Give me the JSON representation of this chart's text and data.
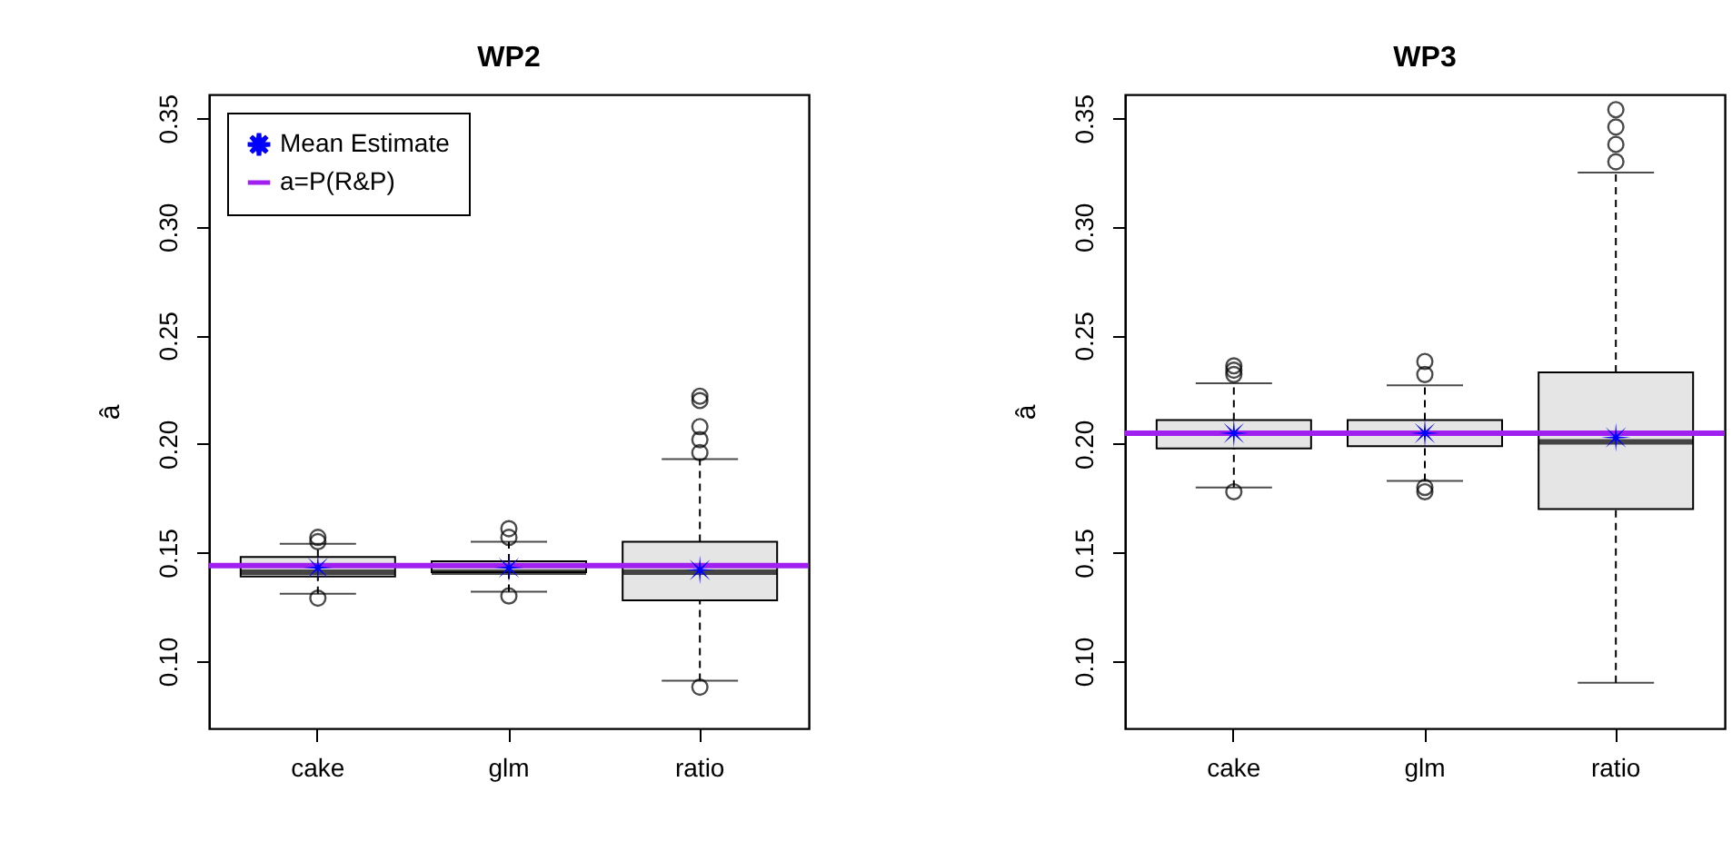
{
  "chart_data": [
    {
      "type": "box",
      "title": "WP2",
      "ylabel": "â",
      "categories": [
        "cake",
        "glm",
        "ratio"
      ],
      "ylim": [
        0.069,
        0.361
      ],
      "yticks": [
        {
          "value": 0.1,
          "label": "0.10"
        },
        0.15,
        {
          "value": 0.2,
          "label": "0.20"
        },
        0.25,
        {
          "value": 0.3,
          "label": "0.30"
        },
        0.35
      ],
      "legend": "top left",
      "marker": "star",
      "series": [
        {
          "type": "box",
          "color": "#e5e5e5",
          "boxes": [
            {
              "low": 0.131,
              "q1": 0.139,
              "median": 0.141,
              "q3": 0.148,
              "high": 0.154,
              "outliers": [
                0.157,
                0.155,
                0.129
              ]
            },
            {
              "low": 0.132,
              "q1": 0.141,
              "median": 0.141,
              "q3": 0.146,
              "high": 0.155,
              "outliers": [
                0.161,
                0.157,
                0.13
              ]
            },
            {
              "low": 0.091,
              "q1": 0.128,
              "median": 0.141,
              "q3": 0.155,
              "high": 0.193,
              "outliers": [
                0.222,
                0.22,
                0.208,
                0.202,
                0.196,
                0.088
              ]
            }
          ]
        },
        {
          "type": "scatter",
          "name": "Mean Estimate",
          "color": "#0000ff",
          "x": [
            "cake",
            "glm",
            "ratio"
          ],
          "values": [
            0.143,
            0.143,
            0.142
          ]
        }
      ],
      "ref_lines": [
        {
          "axis": "y",
          "value": 0.144,
          "label": "a=P(R&P)",
          "color": "#a020f0"
        }
      ]
    },
    {
      "type": "box",
      "title": "WP3",
      "ylabel": "â",
      "categories": [
        "cake",
        "glm",
        "ratio"
      ],
      "ylim": [
        0.069,
        0.361
      ],
      "yticks": [
        {
          "value": 0.1,
          "label": "0.10"
        },
        0.15,
        {
          "value": 0.2,
          "label": "0.20"
        },
        0.25,
        {
          "value": 0.3,
          "label": "0.30"
        },
        0.35
      ],
      "marker": "star",
      "series": [
        {
          "type": "box",
          "color": "#e5e5e5",
          "boxes": [
            {
              "low": 0.18,
              "q1": 0.198,
              "median": 0.205,
              "q3": 0.211,
              "high": 0.228,
              "outliers": [
                0.236,
                0.234,
                0.232,
                0.178
              ]
            },
            {
              "low": 0.183,
              "q1": 0.199,
              "median": 0.205,
              "q3": 0.211,
              "high": 0.227,
              "outliers": [
                0.238,
                0.232,
                0.18,
                0.178
              ]
            },
            {
              "low": 0.09,
              "q1": 0.17,
              "median": 0.201,
              "q3": 0.233,
              "high": 0.325,
              "outliers": [
                0.354,
                0.346,
                0.338,
                0.33
              ]
            }
          ]
        },
        {
          "type": "scatter",
          "color": "#0000ff",
          "x": [
            "cake",
            "glm",
            "ratio"
          ],
          "values": [
            0.205,
            0.205,
            0.203
          ]
        }
      ],
      "ref_lines": [
        {
          "axis": "y",
          "value": 0.205,
          "color": "#a020f0"
        }
      ]
    }
  ]
}
